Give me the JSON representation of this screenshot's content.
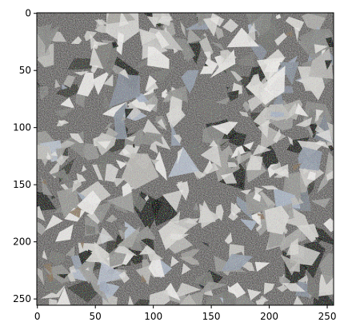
{
  "image_panel": {
    "content": "shredded-paper-texture",
    "colors": {
      "base": "#8f8f8d",
      "light": "#d2d2ce",
      "highlight": "#ecece8",
      "dark": "#3a3835",
      "shadow": "#141312",
      "tint_blue": "#a9b4c4",
      "tint_brown": "#8a7560",
      "frame": "#000000"
    }
  },
  "axes": {
    "x_ticks": [
      "0",
      "50",
      "100",
      "150",
      "200",
      "250"
    ],
    "y_ticks": [
      "0",
      "50",
      "100",
      "150",
      "200",
      "250"
    ],
    "x_range": [
      0,
      256
    ],
    "y_range": [
      0,
      256
    ],
    "y_inverted": true
  }
}
